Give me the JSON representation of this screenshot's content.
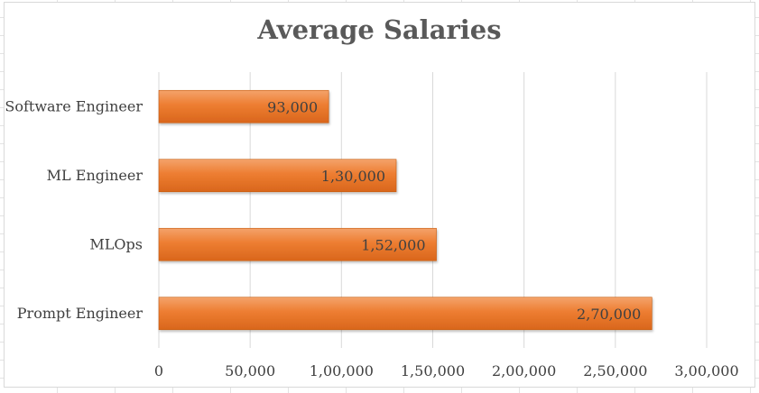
{
  "chart_data": {
    "type": "bar",
    "orientation": "horizontal",
    "title": "Average Salaries",
    "categories": [
      "Software Engineer",
      "ML Engineer",
      "MLOps",
      "Prompt Engineer"
    ],
    "values": [
      93000,
      130000,
      152000,
      270000
    ],
    "value_labels": [
      "93,000",
      "1,30,000",
      "1,52,000",
      "2,70,000"
    ],
    "xlim": [
      0,
      300000
    ],
    "x_ticks": [
      0,
      50000,
      100000,
      150000,
      200000,
      250000,
      300000
    ],
    "x_tick_labels": [
      "0",
      "50,000",
      "1,00,000",
      "1,50,000",
      "2,00,000",
      "2,50,000",
      "3,00,000"
    ],
    "xlabel": "",
    "ylabel": "",
    "grid": "vertical",
    "legend": "none",
    "bar_color": "#ed7d31",
    "bar_color_dark": "#d2691e"
  }
}
